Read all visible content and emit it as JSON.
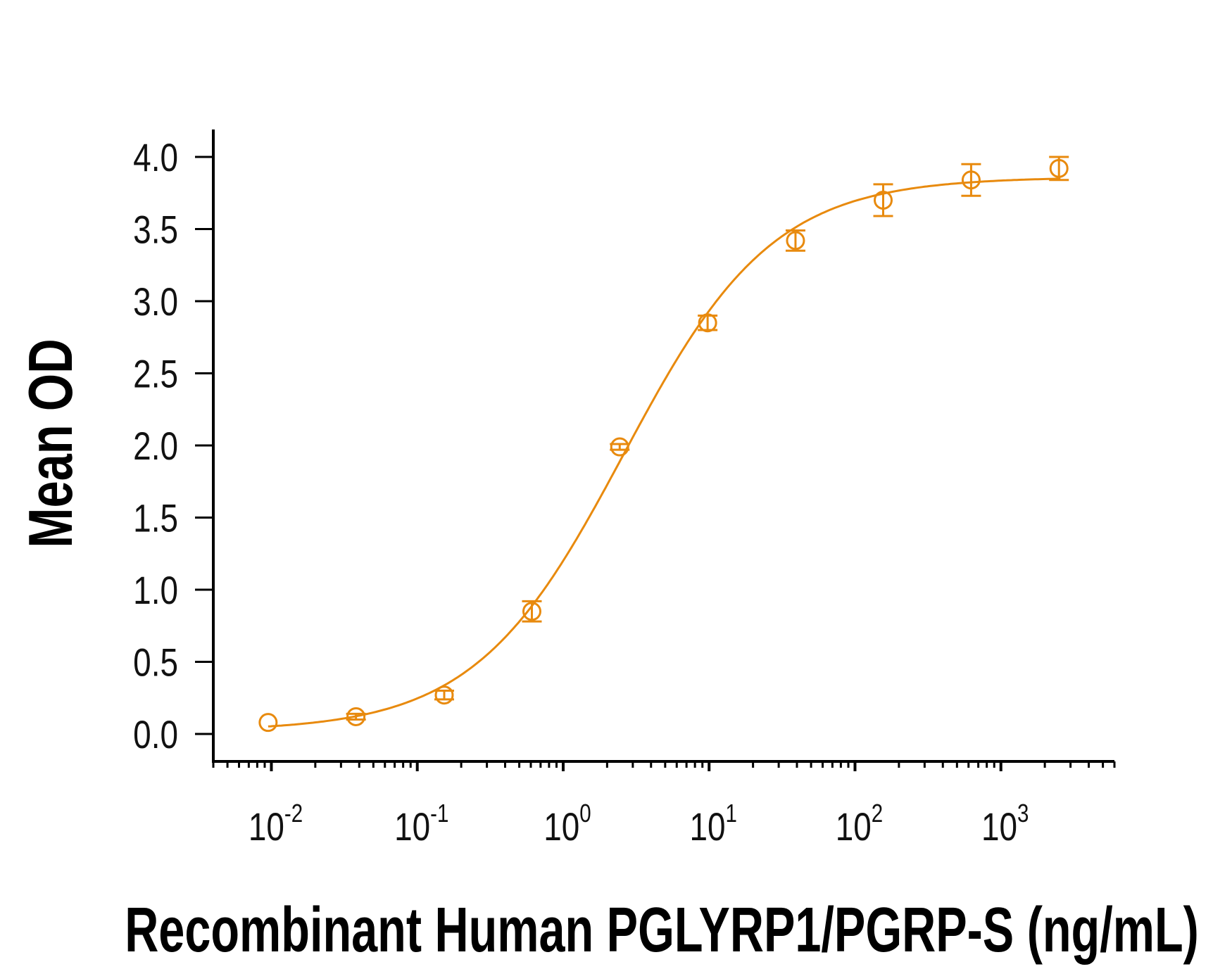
{
  "chart_data": {
    "type": "scatter",
    "title": "",
    "xlabel": "Recombinant Human PGLYRP1/PGRP-S (ng/mL)",
    "ylabel": "Mean OD",
    "x_scale": "log",
    "xlim": [
      0.004,
      6000
    ],
    "ylim": [
      -0.19,
      4.19
    ],
    "x_ticks": [
      0.01,
      0.1,
      1,
      10,
      100,
      1000
    ],
    "x_tick_labels": [
      {
        "base": "10",
        "exp": "-2"
      },
      {
        "base": "10",
        "exp": "-1"
      },
      {
        "base": "10",
        "exp": "0"
      },
      {
        "base": "10",
        "exp": "1"
      },
      {
        "base": "10",
        "exp": "2"
      },
      {
        "base": "10",
        "exp": "3"
      }
    ],
    "y_ticks": [
      0.0,
      0.5,
      1.0,
      1.5,
      2.0,
      2.5,
      3.0,
      3.5,
      4.0
    ],
    "y_tick_labels": [
      "0.0",
      "0.5",
      "1.0",
      "1.5",
      "2.0",
      "2.5",
      "3.0",
      "3.5",
      "4.0"
    ],
    "grid": false,
    "legend": "none",
    "color": "#E88A0E",
    "series": [
      {
        "marker": "open-circle",
        "x": [
          0.0095,
          0.038,
          0.153,
          0.61,
          2.44,
          9.77,
          39.1,
          156,
          625,
          2500
        ],
        "y": [
          0.08,
          0.12,
          0.27,
          0.85,
          1.99,
          2.85,
          3.42,
          3.7,
          3.84,
          3.92
        ],
        "error": [
          0.01,
          0.02,
          0.03,
          0.07,
          0.02,
          0.05,
          0.07,
          0.11,
          0.11,
          0.08
        ]
      }
    ],
    "fit_curve": {
      "model": "4PL",
      "bottom": 0.02,
      "top": 3.86,
      "ec50": 2.6,
      "hill": 0.85
    }
  }
}
